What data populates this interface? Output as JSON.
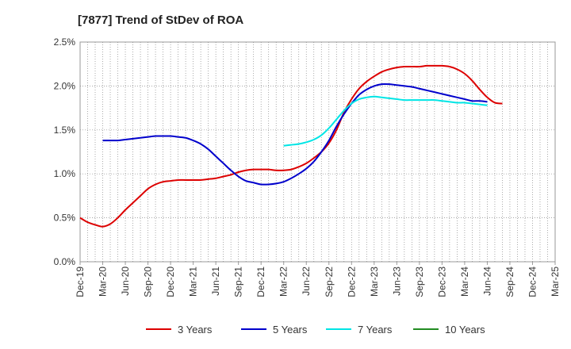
{
  "chart_data": {
    "type": "line",
    "title": "[7877]  Trend of StDev of ROA",
    "xlabel": "",
    "ylabel": "",
    "x_ticks": [
      "Dec-19",
      "Mar-20",
      "Jun-20",
      "Sep-20",
      "Dec-20",
      "Mar-21",
      "Jun-21",
      "Sep-21",
      "Dec-21",
      "Mar-22",
      "Jun-22",
      "Sep-22",
      "Dec-22",
      "Mar-23",
      "Jun-23",
      "Sep-23",
      "Dec-23",
      "Mar-24",
      "Jun-24",
      "Sep-24",
      "Dec-24",
      "Mar-25"
    ],
    "y_ticks": [
      "0.0%",
      "0.5%",
      "1.0%",
      "1.5%",
      "2.0%",
      "2.5%"
    ],
    "y_tick_values": [
      0,
      0.5,
      1.0,
      1.5,
      2.0,
      2.5
    ],
    "ylim": [
      0,
      2.5
    ],
    "grid": true,
    "legend_position": "bottom",
    "series": [
      {
        "name": "3 Years",
        "color": "#dd0000",
        "points": [
          [
            "Dec-19",
            0.5
          ],
          [
            "Jan-20",
            0.45
          ],
          [
            "Feb-20",
            0.42
          ],
          [
            "Mar-20",
            0.4
          ],
          [
            "Apr-20",
            0.43
          ],
          [
            "May-20",
            0.5
          ],
          [
            "Jun-20",
            0.59
          ],
          [
            "Jul-20",
            0.67
          ],
          [
            "Aug-20",
            0.75
          ],
          [
            "Sep-20",
            0.83
          ],
          [
            "Oct-20",
            0.88
          ],
          [
            "Nov-20",
            0.91
          ],
          [
            "Dec-20",
            0.92
          ],
          [
            "Jan-21",
            0.93
          ],
          [
            "Feb-21",
            0.93
          ],
          [
            "Mar-21",
            0.93
          ],
          [
            "Apr-21",
            0.93
          ],
          [
            "May-21",
            0.94
          ],
          [
            "Jun-21",
            0.95
          ],
          [
            "Jul-21",
            0.97
          ],
          [
            "Aug-21",
            0.99
          ],
          [
            "Sep-21",
            1.02
          ],
          [
            "Oct-21",
            1.04
          ],
          [
            "Nov-21",
            1.05
          ],
          [
            "Dec-21",
            1.05
          ],
          [
            "Jan-22",
            1.05
          ],
          [
            "Feb-22",
            1.04
          ],
          [
            "Mar-22",
            1.04
          ],
          [
            "Apr-22",
            1.05
          ],
          [
            "May-22",
            1.08
          ],
          [
            "Jun-22",
            1.12
          ],
          [
            "Jul-22",
            1.18
          ],
          [
            "Aug-22",
            1.25
          ],
          [
            "Sep-22",
            1.35
          ],
          [
            "Oct-22",
            1.5
          ],
          [
            "Nov-22",
            1.7
          ],
          [
            "Dec-22",
            1.85
          ],
          [
            "Jan-23",
            1.97
          ],
          [
            "Feb-23",
            2.05
          ],
          [
            "Mar-23",
            2.11
          ],
          [
            "Apr-23",
            2.16
          ],
          [
            "May-23",
            2.19
          ],
          [
            "Jun-23",
            2.21
          ],
          [
            "Jul-23",
            2.22
          ],
          [
            "Aug-23",
            2.22
          ],
          [
            "Sep-23",
            2.22
          ],
          [
            "Oct-23",
            2.23
          ],
          [
            "Nov-23",
            2.23
          ],
          [
            "Dec-23",
            2.23
          ],
          [
            "Jan-24",
            2.22
          ],
          [
            "Feb-24",
            2.19
          ],
          [
            "Mar-24",
            2.14
          ],
          [
            "Apr-24",
            2.06
          ],
          [
            "May-24",
            1.96
          ],
          [
            "Jun-24",
            1.87
          ],
          [
            "Jul-24",
            1.81
          ],
          [
            "Aug-24",
            1.8
          ]
        ]
      },
      {
        "name": "5 Years",
        "color": "#0000cc",
        "points": [
          [
            "Mar-20",
            1.38
          ],
          [
            "Apr-20",
            1.38
          ],
          [
            "May-20",
            1.38
          ],
          [
            "Jun-20",
            1.39
          ],
          [
            "Jul-20",
            1.4
          ],
          [
            "Aug-20",
            1.41
          ],
          [
            "Sep-20",
            1.42
          ],
          [
            "Oct-20",
            1.43
          ],
          [
            "Nov-20",
            1.43
          ],
          [
            "Dec-20",
            1.43
          ],
          [
            "Jan-21",
            1.42
          ],
          [
            "Feb-21",
            1.41
          ],
          [
            "Mar-21",
            1.38
          ],
          [
            "Apr-21",
            1.34
          ],
          [
            "May-21",
            1.28
          ],
          [
            "Jun-21",
            1.2
          ],
          [
            "Jul-21",
            1.12
          ],
          [
            "Aug-21",
            1.04
          ],
          [
            "Sep-21",
            0.97
          ],
          [
            "Oct-21",
            0.92
          ],
          [
            "Nov-21",
            0.9
          ],
          [
            "Dec-21",
            0.88
          ],
          [
            "Jan-22",
            0.88
          ],
          [
            "Feb-22",
            0.89
          ],
          [
            "Mar-22",
            0.91
          ],
          [
            "Apr-22",
            0.95
          ],
          [
            "May-22",
            1.0
          ],
          [
            "Jun-22",
            1.06
          ],
          [
            "Jul-22",
            1.14
          ],
          [
            "Aug-22",
            1.25
          ],
          [
            "Sep-22",
            1.38
          ],
          [
            "Oct-22",
            1.54
          ],
          [
            "Nov-22",
            1.68
          ],
          [
            "Dec-22",
            1.8
          ],
          [
            "Jan-23",
            1.9
          ],
          [
            "Feb-23",
            1.96
          ],
          [
            "Mar-23",
            2.0
          ],
          [
            "Apr-23",
            2.02
          ],
          [
            "May-23",
            2.02
          ],
          [
            "Jun-23",
            2.01
          ],
          [
            "Jul-23",
            2.0
          ],
          [
            "Aug-23",
            1.99
          ],
          [
            "Sep-23",
            1.97
          ],
          [
            "Oct-23",
            1.95
          ],
          [
            "Nov-23",
            1.93
          ],
          [
            "Dec-23",
            1.91
          ],
          [
            "Jan-24",
            1.89
          ],
          [
            "Feb-24",
            1.87
          ],
          [
            "Mar-24",
            1.85
          ],
          [
            "Apr-24",
            1.83
          ],
          [
            "May-24",
            1.83
          ],
          [
            "Jun-24",
            1.82
          ]
        ]
      },
      {
        "name": "7 Years",
        "color": "#00e5e5",
        "points": [
          [
            "Mar-22",
            1.32
          ],
          [
            "Apr-22",
            1.33
          ],
          [
            "May-22",
            1.34
          ],
          [
            "Jun-22",
            1.36
          ],
          [
            "Jul-22",
            1.39
          ],
          [
            "Aug-22",
            1.44
          ],
          [
            "Sep-22",
            1.52
          ],
          [
            "Oct-22",
            1.62
          ],
          [
            "Nov-22",
            1.72
          ],
          [
            "Dec-22",
            1.8
          ],
          [
            "Jan-23",
            1.85
          ],
          [
            "Feb-23",
            1.87
          ],
          [
            "Mar-23",
            1.88
          ],
          [
            "Apr-23",
            1.87
          ],
          [
            "May-23",
            1.86
          ],
          [
            "Jun-23",
            1.85
          ],
          [
            "Jul-23",
            1.84
          ],
          [
            "Aug-23",
            1.84
          ],
          [
            "Sep-23",
            1.84
          ],
          [
            "Oct-23",
            1.84
          ],
          [
            "Nov-23",
            1.84
          ],
          [
            "Dec-23",
            1.83
          ],
          [
            "Jan-24",
            1.82
          ],
          [
            "Feb-24",
            1.81
          ],
          [
            "Mar-24",
            1.81
          ],
          [
            "Apr-24",
            1.8
          ],
          [
            "May-24",
            1.79
          ],
          [
            "Jun-24",
            1.78
          ]
        ]
      },
      {
        "name": "10 Years",
        "color": "#228b22",
        "points": []
      }
    ]
  }
}
